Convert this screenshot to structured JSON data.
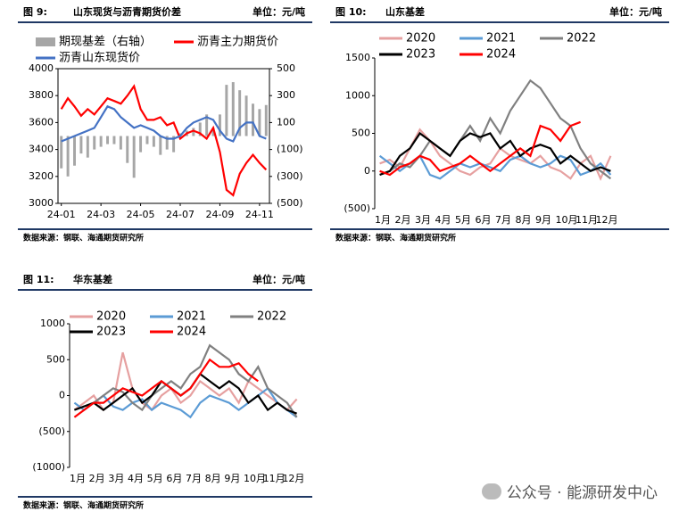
{
  "watermark": "公众号 · 能源研发中心",
  "chart_data": [
    {
      "type": "line",
      "figure_label": "图 9:",
      "title": "山东现货与沥青期货价差",
      "unit": "单位：元/吨",
      "source": "数据来源：钢联、海通期货研究所",
      "categories": [
        "24-01",
        null,
        null,
        null,
        null,
        null,
        "24-03",
        null,
        null,
        null,
        null,
        null,
        "24-05",
        null,
        null,
        null,
        null,
        null,
        "24-07",
        null,
        null,
        null,
        null,
        null,
        "24-09",
        null,
        null,
        null,
        null,
        null,
        "24-11",
        null
      ],
      "series": [
        {
          "name": "期现基差（右轴）",
          "type": "bar",
          "axis": "y2",
          "color": "#a6a6a6",
          "values": [
            -240,
            -300,
            -220,
            -130,
            -160,
            -100,
            -80,
            -60,
            -60,
            -100,
            -200,
            -310,
            -120,
            -60,
            -80,
            -140,
            -100,
            -120,
            20,
            40,
            60,
            100,
            160,
            60,
            160,
            380,
            400,
            340,
            300,
            240,
            200,
            230
          ]
        },
        {
          "name": "沥青主力期货价",
          "color": "#ff0000",
          "values": [
            3700,
            3780,
            3720,
            3650,
            3700,
            3660,
            3720,
            3780,
            3760,
            3740,
            3800,
            3870,
            3700,
            3620,
            3620,
            3640,
            3580,
            3600,
            3480,
            3520,
            3540,
            3520,
            3480,
            3560,
            3380,
            3100,
            3060,
            3220,
            3300,
            3360,
            3300,
            3250
          ]
        },
        {
          "name": "沥青山东现货价",
          "color": "#4472c4",
          "values": [
            3460,
            3480,
            3500,
            3520,
            3540,
            3560,
            3640,
            3720,
            3700,
            3640,
            3600,
            3560,
            3580,
            3560,
            3540,
            3500,
            3480,
            3480,
            3500,
            3560,
            3600,
            3620,
            3640,
            3620,
            3540,
            3480,
            3460,
            3560,
            3600,
            3600,
            3500,
            3480
          ]
        }
      ],
      "ylim": [
        3000,
        4000
      ],
      "yticks": [
        3000,
        3200,
        3400,
        3600,
        3800,
        4000
      ],
      "y2lim": [
        -500,
        500
      ],
      "y2ticks": [
        {
          "value": -500,
          "label": "(500)"
        },
        {
          "value": -300,
          "label": "(300)"
        },
        {
          "value": -100,
          "label": "(100)"
        },
        100,
        300,
        500
      ],
      "negative_label_color": "#ff0000",
      "frame": true
    },
    {
      "type": "line",
      "figure_label": "图 10:",
      "title": "山东基差",
      "unit": "单位：元/吨",
      "source": "数据来源：钢联、海通期货研究所",
      "categories": [
        "1月",
        null,
        "2月",
        null,
        "3月",
        null,
        "4月",
        null,
        "5月",
        null,
        "6月",
        null,
        "7月",
        null,
        "8月",
        null,
        "9月",
        null,
        "10月",
        null,
        "11月",
        null,
        "12月",
        null
      ],
      "series": [
        {
          "name": "2020",
          "color": "#e6a0a0",
          "values": [
            100,
            150,
            50,
            300,
            550,
            400,
            200,
            100,
            0,
            -50,
            50,
            100,
            300,
            200,
            150,
            100,
            200,
            50,
            0,
            -100,
            100,
            200,
            -100,
            200
          ]
        },
        {
          "name": "2021",
          "color": "#5b9bd5",
          "values": [
            200,
            100,
            0,
            100,
            200,
            -50,
            -100,
            0,
            100,
            50,
            100,
            50,
            0,
            150,
            200,
            100,
            50,
            100,
            200,
            150,
            -50,
            0,
            100,
            -50
          ]
        },
        {
          "name": "2022",
          "color": "#808080",
          "values": [
            -50,
            0,
            100,
            50,
            200,
            400,
            300,
            200,
            400,
            600,
            400,
            700,
            500,
            800,
            1000,
            1200,
            1100,
            900,
            700,
            600,
            300,
            100,
            0,
            -100
          ]
        },
        {
          "name": "2023",
          "color": "#000000",
          "values": [
            -50,
            0,
            200,
            300,
            500,
            400,
            300,
            200,
            400,
            500,
            450,
            500,
            300,
            400,
            200,
            300,
            350,
            300,
            100,
            200,
            100,
            0,
            50,
            0
          ]
        },
        {
          "name": "2024",
          "color": "#ff0000",
          "values": [
            0,
            -50,
            50,
            100,
            200,
            150,
            0,
            50,
            100,
            200,
            100,
            0,
            100,
            200,
            300,
            200,
            600,
            550,
            400,
            600,
            650,
            null,
            null,
            null
          ]
        }
      ],
      "ylim": [
        -500,
        1500
      ],
      "yticks": [
        {
          "value": -500,
          "label": "(500)"
        },
        0,
        500,
        1000,
        1500
      ],
      "negative_label_color": "#ff0000",
      "frame": false
    },
    {
      "type": "line",
      "figure_label": "图 11:",
      "title": "华东基差",
      "unit": "单位：元/吨",
      "source": "数据来源：钢联、海通期货研究所",
      "categories": [
        "1月",
        null,
        "2月",
        null,
        "3月",
        null,
        "4月",
        null,
        "5月",
        null,
        "6月",
        null,
        "7月",
        null,
        "8月",
        null,
        "9月",
        null,
        "10月",
        null,
        "11月",
        null,
        "12月",
        null
      ],
      "series": [
        {
          "name": "2020",
          "color": "#e6a0a0",
          "values": [
            -200,
            -100,
            0,
            -200,
            -100,
            600,
            100,
            -100,
            -200,
            0,
            100,
            -100,
            0,
            200,
            100,
            0,
            100,
            -100,
            200,
            100,
            0,
            -100,
            -200,
            -50
          ]
        },
        {
          "name": "2021",
          "color": "#5b9bd5",
          "values": [
            -100,
            -200,
            -100,
            0,
            -150,
            -200,
            -100,
            -50,
            -200,
            -100,
            -150,
            -200,
            -300,
            -100,
            0,
            -50,
            -100,
            -200,
            -100,
            0,
            100,
            -100,
            -200,
            -300
          ]
        },
        {
          "name": "2022",
          "color": "#808080",
          "values": [
            -200,
            -150,
            -100,
            0,
            100,
            50,
            -100,
            -200,
            0,
            100,
            200,
            100,
            300,
            400,
            700,
            600,
            500,
            300,
            200,
            400,
            100,
            0,
            -100,
            -300
          ]
        },
        {
          "name": "2023",
          "color": "#000000",
          "values": [
            -200,
            -150,
            -100,
            -200,
            -100,
            0,
            100,
            -100,
            0,
            200,
            100,
            0,
            100,
            300,
            200,
            100,
            200,
            100,
            -100,
            0,
            -200,
            -100,
            -200,
            -250
          ]
        },
        {
          "name": "2024",
          "color": "#ff0000",
          "values": [
            -300,
            -200,
            -100,
            -100,
            0,
            100,
            50,
            0,
            100,
            200,
            100,
            0,
            100,
            300,
            500,
            400,
            400,
            450,
            300,
            200,
            null,
            null,
            null,
            null
          ]
        }
      ],
      "ylim": [
        -1000,
        1000
      ],
      "yticks": [
        {
          "value": -1000,
          "label": "(1000)"
        },
        {
          "value": -500,
          "label": "(500)"
        },
        0,
        500,
        1000
      ],
      "negative_label_color": "#ff0000",
      "frame": false
    }
  ]
}
